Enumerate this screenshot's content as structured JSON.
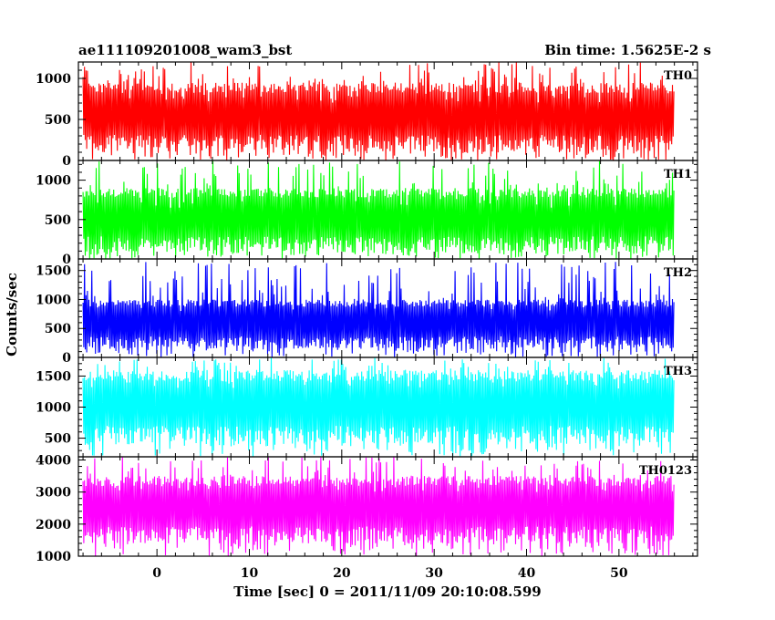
{
  "title_left": "ae111109201008_wam3_bst",
  "title_right": "Bin time: 1.5625E-2 s",
  "chart_data": {
    "type": "line",
    "style": "histogram-step",
    "xlabel": "Time [sec] 0 = 2011/11/09 20:10:08.599",
    "ylabel": "Counts/sec",
    "xlim": [
      -8.5,
      58.5
    ],
    "data_x_range": [
      -8.0,
      56.0
    ],
    "xticks": [
      0,
      10,
      20,
      30,
      40,
      50
    ],
    "bin_time": 0.015625,
    "panels": [
      {
        "name": "TH0",
        "color": "#ff0000",
        "ylim": [
          0,
          1200
        ],
        "yticks": [
          0,
          500,
          1000
        ],
        "typical_range": [
          100,
          950
        ],
        "peak_range": [
          700,
          1200
        ]
      },
      {
        "name": "TH1",
        "color": "#00ff00",
        "ylim": [
          0,
          1250
        ],
        "yticks": [
          0,
          500,
          1000
        ],
        "typical_range": [
          80,
          900
        ],
        "peak_range": [
          650,
          1250
        ]
      },
      {
        "name": "TH2",
        "color": "#0000ff",
        "ylim": [
          0,
          1700
        ],
        "yticks": [
          0,
          500,
          1000,
          1500
        ],
        "typical_range": [
          150,
          1000
        ],
        "peak_range": [
          800,
          1650
        ]
      },
      {
        "name": "TH3",
        "color": "#00ffff",
        "ylim": [
          200,
          1800
        ],
        "yticks": [
          500,
          1000,
          1500
        ],
        "typical_range": [
          400,
          1600
        ],
        "peak_range": [
          1300,
          1800
        ]
      },
      {
        "name": "TH0123",
        "color": "#ff00ff",
        "ylim": [
          1000,
          4100
        ],
        "yticks": [
          1000,
          2000,
          3000,
          4000
        ],
        "typical_range": [
          1400,
          3500
        ],
        "peak_range": [
          3000,
          4100
        ]
      }
    ]
  }
}
